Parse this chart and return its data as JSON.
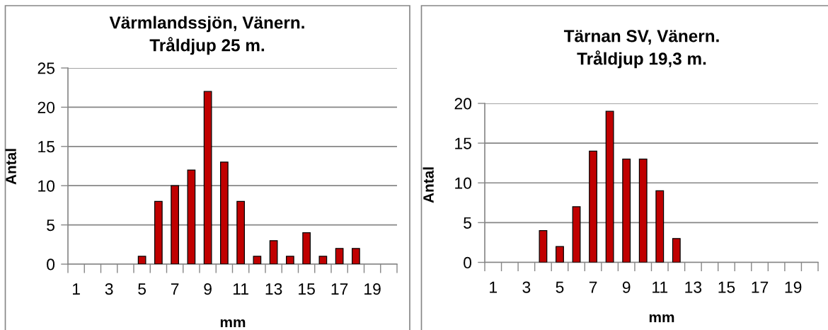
{
  "chart_data": [
    {
      "type": "bar",
      "title": "Värmlandssjön, Vänern.\nTråldjup 25 m.",
      "xlabel": "mm",
      "ylabel": "Antal",
      "categories": [
        "1",
        null,
        "3",
        null,
        "5",
        null,
        "7",
        null,
        "9",
        null,
        "11",
        null,
        "13",
        null,
        "15",
        null,
        "17",
        null,
        "19",
        null
      ],
      "values": [
        0,
        0,
        0,
        0,
        1,
        8,
        10,
        12,
        22,
        13,
        8,
        1,
        3,
        1,
        4,
        1,
        2,
        2,
        0,
        0
      ],
      "color": "#c00000",
      "ylim": [
        0,
        25
      ],
      "yticks": [
        0,
        5,
        10,
        15,
        20,
        25
      ],
      "grid": "y"
    },
    {
      "type": "bar",
      "title": "Tärnan SV, Vänern.\nTråldjup 19,3 m.",
      "xlabel": "mm",
      "ylabel": "Antal",
      "categories": [
        "1",
        null,
        "3",
        null,
        "5",
        null,
        "7",
        null,
        "9",
        null,
        "11",
        null,
        "13",
        null,
        "15",
        null,
        "17",
        null,
        "19",
        null
      ],
      "values": [
        0,
        0,
        0,
        4,
        2,
        7,
        14,
        19,
        13,
        13,
        9,
        3,
        0,
        0,
        0,
        0,
        0,
        0,
        0,
        0
      ],
      "color": "#c00000",
      "ylim": [
        0,
        20
      ],
      "yticks": [
        0,
        5,
        10,
        15,
        20
      ],
      "grid": "y"
    }
  ]
}
